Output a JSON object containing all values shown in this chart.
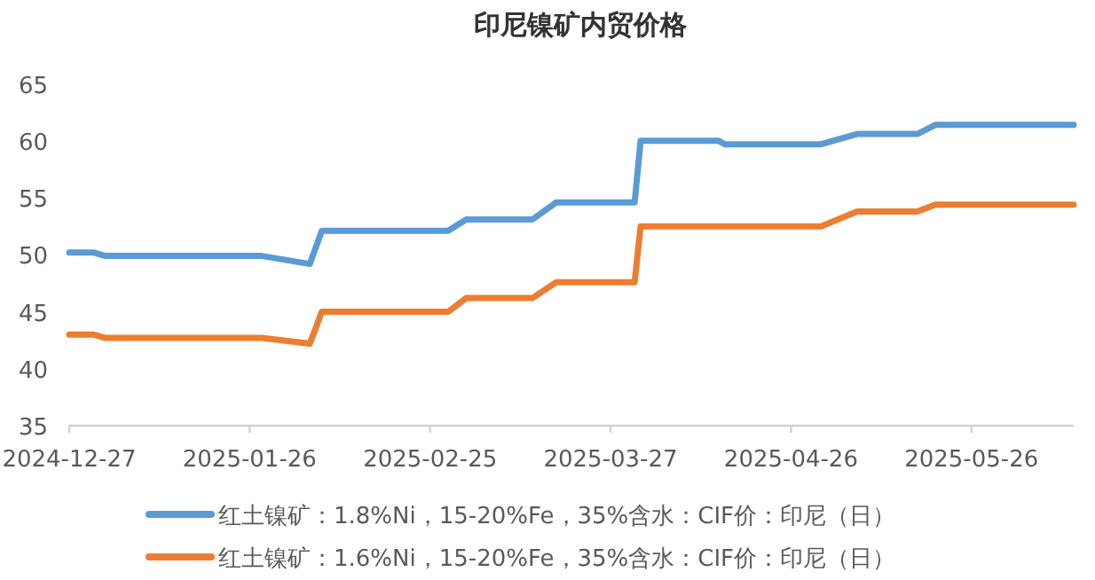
{
  "chart_data": {
    "type": "line",
    "title": "印尼镍矿内贸价格",
    "xlim": [
      "2024-12-27",
      "2025-06-12"
    ],
    "xticks": [
      "2024-12-27",
      "2025-01-26",
      "2025-02-25",
      "2025-03-27",
      "2025-04-26",
      "2025-05-26"
    ],
    "ylim": [
      35,
      65
    ],
    "yticks": [
      35,
      40,
      45,
      50,
      55,
      60,
      65
    ],
    "grid": false,
    "legend": "bottom",
    "marker": "none",
    "line_style": "solid",
    "series": [
      {
        "name": "红土镍矿：1.8%Ni，15-20%Fe，35%含水：CIF价：印尼（日）",
        "color": "#5b9bd5",
        "x": [
          "2024-12-27",
          "2024-12-31",
          "2025-01-02",
          "2025-01-28",
          "2025-02-05",
          "2025-02-07",
          "2025-02-28",
          "2025-03-03",
          "2025-03-14",
          "2025-03-18",
          "2025-03-31",
          "2025-04-01",
          "2025-04-14",
          "2025-04-15",
          "2025-05-01",
          "2025-05-07",
          "2025-05-17",
          "2025-05-20",
          "2025-06-12"
        ],
        "values": [
          50.2,
          50.2,
          49.9,
          49.9,
          49.2,
          52.1,
          52.1,
          53.1,
          53.1,
          54.6,
          54.6,
          60.0,
          60.0,
          59.7,
          59.7,
          60.6,
          60.6,
          61.4,
          61.4
        ]
      },
      {
        "name": "红土镍矿：1.6%Ni，15-20%Fe，35%含水：CIF价：印尼（日）",
        "color": "#ed7d31",
        "x": [
          "2024-12-27",
          "2024-12-31",
          "2025-01-02",
          "2025-01-28",
          "2025-02-05",
          "2025-02-07",
          "2025-02-28",
          "2025-03-03",
          "2025-03-14",
          "2025-03-18",
          "2025-03-31",
          "2025-04-01",
          "2025-05-01",
          "2025-05-07",
          "2025-05-17",
          "2025-05-20",
          "2025-06-12"
        ],
        "values": [
          43.0,
          43.0,
          42.7,
          42.7,
          42.2,
          45.0,
          45.0,
          46.2,
          46.2,
          47.6,
          47.6,
          52.5,
          52.5,
          53.8,
          53.8,
          54.4,
          54.4
        ]
      }
    ]
  }
}
